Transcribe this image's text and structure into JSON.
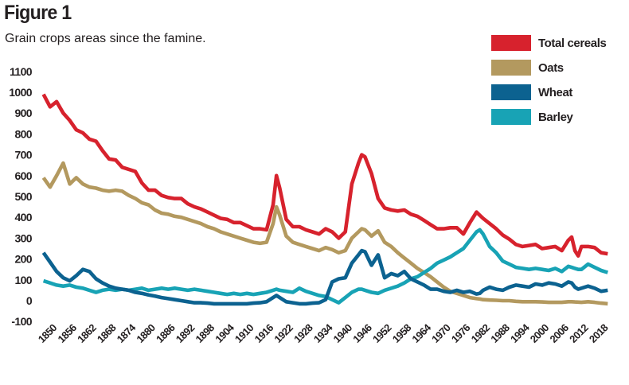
{
  "figure": {
    "label": "Figure 1",
    "caption": "Grain crops areas since the famine."
  },
  "legend": {
    "position": "top-right",
    "items": [
      "Total cereals",
      "Oats",
      "Wheat",
      "Barley"
    ]
  },
  "colors": {
    "total_cereals": "#d7222d",
    "oats": "#b3995f",
    "wheat": "#0c6290",
    "barley": "#18a3b5",
    "text": "#231f20",
    "background": "#ffffff"
  },
  "chart_data": {
    "type": "line",
    "title": "Grain crops areas since the famine.",
    "grid": false,
    "legend_position": "top-right",
    "ylim": [
      -100,
      1100
    ],
    "yticks": [
      1100,
      1000,
      900,
      800,
      700,
      600,
      500,
      400,
      300,
      200,
      100,
      0,
      -100
    ],
    "xticks": [
      1850,
      1856,
      1862,
      1868,
      1874,
      1880,
      1886,
      1892,
      1898,
      1904,
      1910,
      1916,
      1922,
      1928,
      1934,
      1940,
      1946,
      1952,
      1958,
      1964,
      1970,
      1976,
      1982,
      1988,
      1994,
      2000,
      2006,
      2012,
      2018
    ],
    "x": [
      1847,
      1849,
      1851,
      1853,
      1855,
      1857,
      1859,
      1861,
      1863,
      1865,
      1867,
      1869,
      1871,
      1873,
      1875,
      1877,
      1879,
      1881,
      1883,
      1885,
      1887,
      1889,
      1891,
      1893,
      1895,
      1897,
      1899,
      1901,
      1903,
      1905,
      1907,
      1909,
      1911,
      1913,
      1915,
      1917,
      1918,
      1919,
      1921,
      1923,
      1925,
      1927,
      1929,
      1931,
      1933,
      1935,
      1937,
      1939,
      1941,
      1943,
      1944,
      1945,
      1947,
      1949,
      1951,
      1953,
      1955,
      1957,
      1959,
      1961,
      1963,
      1965,
      1967,
      1969,
      1971,
      1973,
      1975,
      1977,
      1979,
      1980,
      1981,
      1983,
      1985,
      1987,
      1989,
      1991,
      1993,
      1995,
      1997,
      1999,
      2001,
      2003,
      2005,
      2007,
      2008,
      2009,
      2010,
      2011,
      2013,
      2015,
      2017,
      2019
    ],
    "series": [
      {
        "name": "Total cereals",
        "color": "#d7222d",
        "values": [
          990,
          930,
          955,
          900,
          865,
          820,
          805,
          775,
          765,
          720,
          680,
          675,
          640,
          630,
          620,
          565,
          530,
          530,
          505,
          495,
          490,
          490,
          465,
          450,
          440,
          425,
          410,
          395,
          390,
          375,
          375,
          360,
          345,
          345,
          340,
          460,
          600,
          540,
          390,
          355,
          355,
          340,
          330,
          320,
          345,
          330,
          300,
          330,
          560,
          660,
          700,
          690,
          610,
          490,
          445,
          435,
          430,
          435,
          415,
          405,
          385,
          365,
          345,
          345,
          350,
          350,
          320,
          375,
          425,
          410,
          395,
          370,
          345,
          315,
          295,
          270,
          260,
          265,
          270,
          250,
          255,
          260,
          240,
          290,
          305,
          240,
          215,
          260,
          260,
          255,
          230,
          225
        ]
      },
      {
        "name": "Oats",
        "color": "#b3995f",
        "values": [
          590,
          545,
          600,
          660,
          560,
          590,
          560,
          545,
          540,
          530,
          525,
          530,
          525,
          505,
          490,
          470,
          460,
          435,
          420,
          415,
          405,
          400,
          390,
          380,
          370,
          355,
          345,
          330,
          320,
          310,
          300,
          290,
          280,
          275,
          280,
          370,
          450,
          410,
          310,
          280,
          270,
          260,
          250,
          240,
          255,
          245,
          230,
          240,
          300,
          330,
          345,
          340,
          310,
          335,
          280,
          260,
          230,
          205,
          180,
          155,
          135,
          115,
          90,
          65,
          45,
          35,
          25,
          15,
          10,
          8,
          5,
          3,
          2,
          0,
          0,
          -3,
          -5,
          -5,
          -5,
          -6,
          -8,
          -8,
          -8,
          -5,
          -5,
          -6,
          -7,
          -8,
          -5,
          -8,
          -12,
          -15
        ]
      },
      {
        "name": "Wheat",
        "color": "#0c6290",
        "values": [
          230,
          185,
          140,
          110,
          95,
          120,
          150,
          140,
          105,
          85,
          70,
          60,
          55,
          50,
          40,
          35,
          28,
          22,
          15,
          10,
          5,
          0,
          -5,
          -10,
          -10,
          -12,
          -15,
          -15,
          -15,
          -15,
          -15,
          -15,
          -12,
          -10,
          -5,
          15,
          25,
          15,
          -5,
          -10,
          -15,
          -15,
          -12,
          -10,
          5,
          90,
          105,
          110,
          180,
          220,
          240,
          235,
          170,
          220,
          110,
          130,
          120,
          140,
          105,
          90,
          75,
          55,
          55,
          45,
          40,
          50,
          40,
          45,
          32,
          35,
          50,
          65,
          55,
          50,
          65,
          75,
          70,
          65,
          80,
          75,
          85,
          80,
          70,
          90,
          85,
          65,
          55,
          60,
          70,
          60,
          45,
          50
        ]
      },
      {
        "name": "Barley",
        "color": "#18a3b5",
        "values": [
          95,
          85,
          75,
          70,
          75,
          65,
          60,
          50,
          40,
          50,
          55,
          50,
          55,
          50,
          55,
          60,
          50,
          55,
          60,
          55,
          60,
          55,
          50,
          55,
          50,
          45,
          40,
          35,
          30,
          35,
          30,
          35,
          30,
          35,
          40,
          50,
          55,
          50,
          45,
          40,
          60,
          45,
          35,
          25,
          20,
          5,
          -10,
          15,
          40,
          55,
          55,
          50,
          40,
          35,
          50,
          60,
          70,
          85,
          105,
          115,
          135,
          155,
          180,
          195,
          210,
          230,
          250,
          290,
          330,
          340,
          320,
          260,
          230,
          190,
          175,
          160,
          155,
          150,
          155,
          150,
          145,
          155,
          140,
          165,
          160,
          155,
          150,
          150,
          175,
          160,
          145,
          135
        ]
      }
    ],
    "draw_order": [
      1,
      3,
      2,
      0
    ]
  }
}
